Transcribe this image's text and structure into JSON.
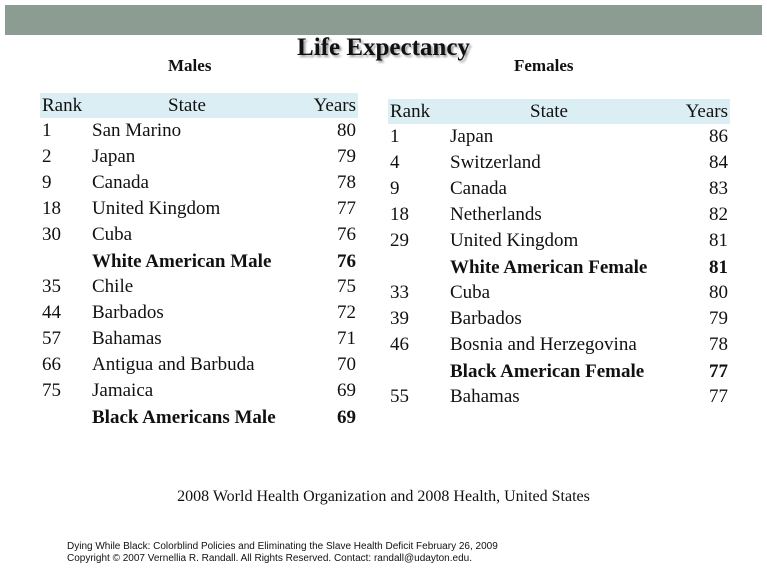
{
  "title": "Life Expectancy",
  "males": {
    "heading": "Males",
    "columns": [
      "Rank",
      "State",
      "Years"
    ],
    "rows": [
      {
        "rank": "1",
        "state": "San Marino",
        "years": "80"
      },
      {
        "rank": "2",
        "state": "Japan",
        "years": "79"
      },
      {
        "rank": "9",
        "state": "Canada",
        "years": "78"
      },
      {
        "rank": "18",
        "state": "United Kingdom",
        "years": "77"
      },
      {
        "rank": "30",
        "state": "Cuba",
        "years": "76"
      },
      {
        "rank": "",
        "state": "White American Male",
        "years": "76",
        "bold": true
      },
      {
        "rank": "35",
        "state": "Chile",
        "years": "75"
      },
      {
        "rank": "44",
        "state": "Barbados",
        "years": "72"
      },
      {
        "rank": "57",
        "state": "Bahamas",
        "years": "71"
      },
      {
        "rank": "66",
        "state": "Antigua and Barbuda",
        "years": "70"
      },
      {
        "rank": "75",
        "state": "Jamaica",
        "years": "69"
      },
      {
        "rank": "",
        "state": "Black Americans Male",
        "years": "69",
        "bold": true
      }
    ]
  },
  "females": {
    "heading": "Females",
    "columns": [
      "Rank",
      "State",
      "Years"
    ],
    "rows": [
      {
        "rank": "1",
        "state": "Japan",
        "years": "86"
      },
      {
        "rank": "4",
        "state": "Switzerland",
        "years": "84"
      },
      {
        "rank": "9",
        "state": "Canada",
        "years": "83"
      },
      {
        "rank": "18",
        "state": "Netherlands",
        "years": "82"
      },
      {
        "rank": "29",
        "state": "United Kingdom",
        "years": "81"
      },
      {
        "rank": "",
        "state": "White American Female",
        "years": "81",
        "bold": true
      },
      {
        "rank": "33",
        "state": "Cuba",
        "years": "80"
      },
      {
        "rank": "39",
        "state": "Barbados",
        "years": "79"
      },
      {
        "rank": "46",
        "state": "Bosnia and Herzegovina",
        "years": "78"
      },
      {
        "rank": "",
        "state": "Black American Female",
        "years": "77",
        "bold": true
      },
      {
        "rank": "55",
        "state": "Bahamas",
        "years": "77"
      }
    ]
  },
  "source": "2008 World Health Organization and 2008 Health, United States",
  "footer": {
    "line1": "Dying While Black: Colorblind Policies and Eliminating the Slave Health Deficit  February 26, 2009",
    "line2": "Copyright © 2007 Vernellia R. Randall.  All Rights Reserved.  Contact: randall@udayton.edu."
  },
  "colors": {
    "top_bar": "#8c9c93",
    "header_fill": "#dbeef3"
  }
}
